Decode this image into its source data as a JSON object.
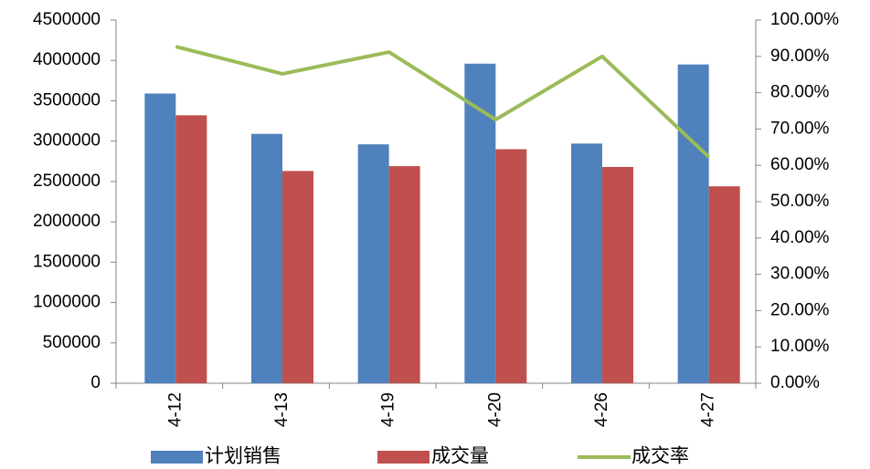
{
  "chart_data": {
    "type": "bar",
    "categories": [
      "4-12",
      "4-13",
      "4-19",
      "4-20",
      "4-26",
      "4-27"
    ],
    "series": [
      {
        "name": "计划销售",
        "color": "#4f81bd",
        "values": [
          3590000,
          3090000,
          2960000,
          3960000,
          2970000,
          3950000
        ]
      },
      {
        "name": "成交量",
        "color": "#c0504d",
        "values": [
          3320000,
          2630000,
          2690000,
          2900000,
          2680000,
          2440000
        ]
      },
      {
        "name": "成交率",
        "type": "line",
        "axis": "y2",
        "color": "#9bbb59",
        "values": [
          92.7,
          85.2,
          91.2,
          72.6,
          90.0,
          62.3
        ]
      }
    ],
    "ylim": [
      0,
      4500000
    ],
    "yticks": [
      0,
      500000,
      1000000,
      1500000,
      2000000,
      2500000,
      3000000,
      3500000,
      4000000,
      4500000
    ],
    "y2lim": [
      0,
      100
    ],
    "y2ticks": [
      {
        "value": 0,
        "label": "0.00%"
      },
      {
        "value": 10,
        "label": "10.00%"
      },
      {
        "value": 20,
        "label": "20.00%"
      },
      {
        "value": 30,
        "label": "30.00%"
      },
      {
        "value": 40,
        "label": "40.00%"
      },
      {
        "value": 50,
        "label": "50.00%"
      },
      {
        "value": 60,
        "label": "60.00%"
      },
      {
        "value": 70,
        "label": "70.00%"
      },
      {
        "value": 80,
        "label": "80.00%"
      },
      {
        "value": 90,
        "label": "90.00%"
      },
      {
        "value": 100,
        "label": "100.00%"
      }
    ],
    "grid": false,
    "legend": "bottom"
  }
}
